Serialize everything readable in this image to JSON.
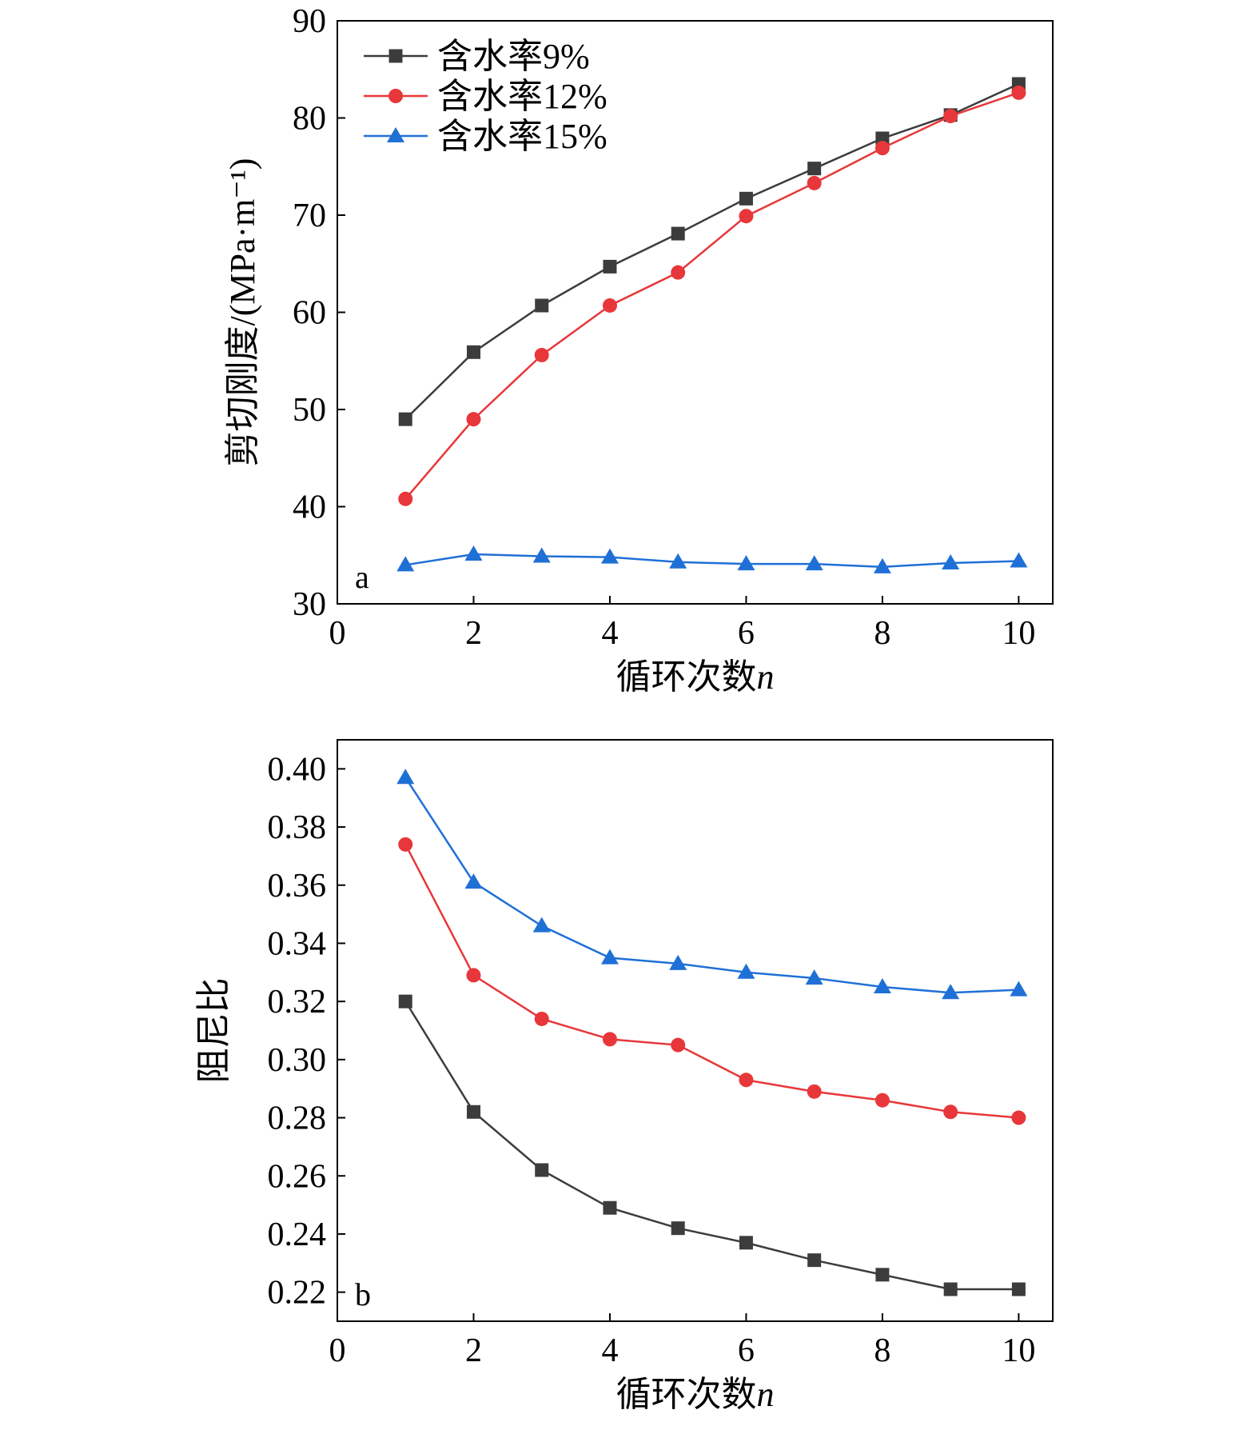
{
  "chart_data": [
    {
      "id": "a",
      "type": "line",
      "panel_label": "a",
      "xlabel": "循环次数",
      "xlabel_var": "n",
      "ylabel": "剪切刚度/(MPa·m⁻¹)",
      "xlim": [
        0,
        10.5
      ],
      "ylim": [
        30,
        90
      ],
      "xticks": [
        0,
        2,
        4,
        6,
        8,
        10
      ],
      "yticks": [
        30,
        40,
        50,
        60,
        70,
        80,
        90
      ],
      "tick_decimals": 0,
      "grid": false,
      "legend": "top-left",
      "x": [
        1,
        2,
        3,
        4,
        5,
        6,
        7,
        8,
        9,
        10
      ],
      "series": [
        {
          "name": "含水率9%",
          "color": "#3c3c3c",
          "marker": "square",
          "values": [
            49.0,
            55.9,
            60.7,
            64.7,
            68.1,
            71.7,
            74.8,
            77.9,
            80.3,
            83.5
          ]
        },
        {
          "name": "含水率12%",
          "color": "#e8373a",
          "marker": "circle",
          "values": [
            40.8,
            49.0,
            55.6,
            60.7,
            64.1,
            69.9,
            73.3,
            76.9,
            80.2,
            82.6
          ]
        },
        {
          "name": "含水率15%",
          "color": "#1f70d6",
          "marker": "triangle",
          "values": [
            34.0,
            35.1,
            34.9,
            34.8,
            34.3,
            34.1,
            34.1,
            33.8,
            34.2,
            34.4
          ]
        }
      ]
    },
    {
      "id": "b",
      "type": "line",
      "panel_label": "b",
      "xlabel": "循环次数",
      "xlabel_var": "n",
      "ylabel": "阻尼比",
      "xlim": [
        0,
        10.5
      ],
      "ylim": [
        0.21,
        0.41
      ],
      "xticks": [
        0,
        2,
        4,
        6,
        8,
        10
      ],
      "yticks": [
        0.22,
        0.24,
        0.26,
        0.28,
        0.3,
        0.32,
        0.34,
        0.36,
        0.38,
        0.4
      ],
      "tick_decimals": 2,
      "grid": false,
      "x": [
        1,
        2,
        3,
        4,
        5,
        6,
        7,
        8,
        9,
        10
      ],
      "series": [
        {
          "color": "#3c3c3c",
          "marker": "square",
          "values": [
            0.32,
            0.282,
            0.262,
            0.249,
            0.242,
            0.237,
            0.231,
            0.226,
            0.221,
            0.221
          ]
        },
        {
          "color": "#e8373a",
          "marker": "circle",
          "values": [
            0.374,
            0.329,
            0.314,
            0.307,
            0.305,
            0.293,
            0.289,
            0.286,
            0.282,
            0.28
          ]
        },
        {
          "color": "#1f70d6",
          "marker": "triangle",
          "values": [
            0.397,
            0.361,
            0.346,
            0.335,
            0.333,
            0.33,
            0.328,
            0.325,
            0.323,
            0.324
          ]
        }
      ]
    }
  ]
}
